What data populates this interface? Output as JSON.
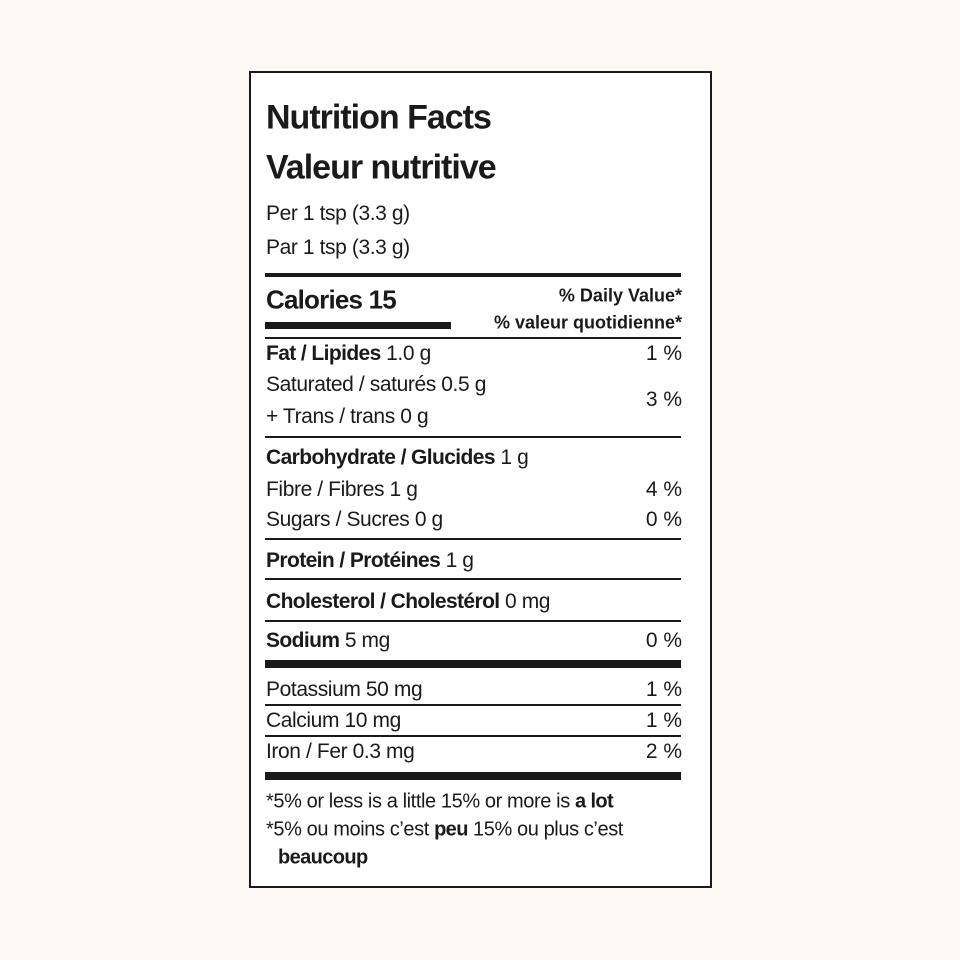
{
  "header": {
    "title": "Nutrition Facts",
    "title_fr": "Valeur nutritive",
    "serving": "Per 1 tsp (3.3 g)",
    "serving_fr": "Par 1 tsp (3.3 g)"
  },
  "calories": {
    "label": "Calories 15",
    "daily_value": "% Daily Value*",
    "daily_value_fr": "% valeur quotidienne*"
  },
  "rows": [
    {
      "bold": "Fat / Lipides",
      "text": "1.0 g",
      "dv": "1 %"
    },
    {
      "text": "Saturated / saturés 0.5 g"
    },
    {
      "text": "+ Trans / trans 0 g",
      "dv": "3 %"
    },
    {
      "bold": "Carbohydrate / Glucides",
      "text": "1 g"
    },
    {
      "text": "Fibre / Fibres 1 g",
      "dv": "4 %"
    },
    {
      "text": "Sugars / Sucres 0 g",
      "dv": "0 %"
    },
    {
      "bold": "Protein / Protéines",
      "text": "1 g"
    },
    {
      "bold": "Cholesterol / Cholestérol",
      "text": "0 mg"
    },
    {
      "bold": "Sodium",
      "text": "5 mg",
      "dv": "0 %"
    },
    {
      "text": "Potassium 50 mg",
      "dv": "1 %"
    },
    {
      "text": "Calcium 10 mg",
      "dv": "1 %"
    },
    {
      "text": "Iron / Fer 0.3 mg",
      "dv": "2 %"
    }
  ],
  "footnote": {
    "line1": [
      "*5% or less is a little 15% or more is",
      "a lot"
    ],
    "line2": [
      "*5% ou moins c’est",
      "peu",
      "15% ou plus c’est"
    ],
    "line3": "beaucoup"
  }
}
